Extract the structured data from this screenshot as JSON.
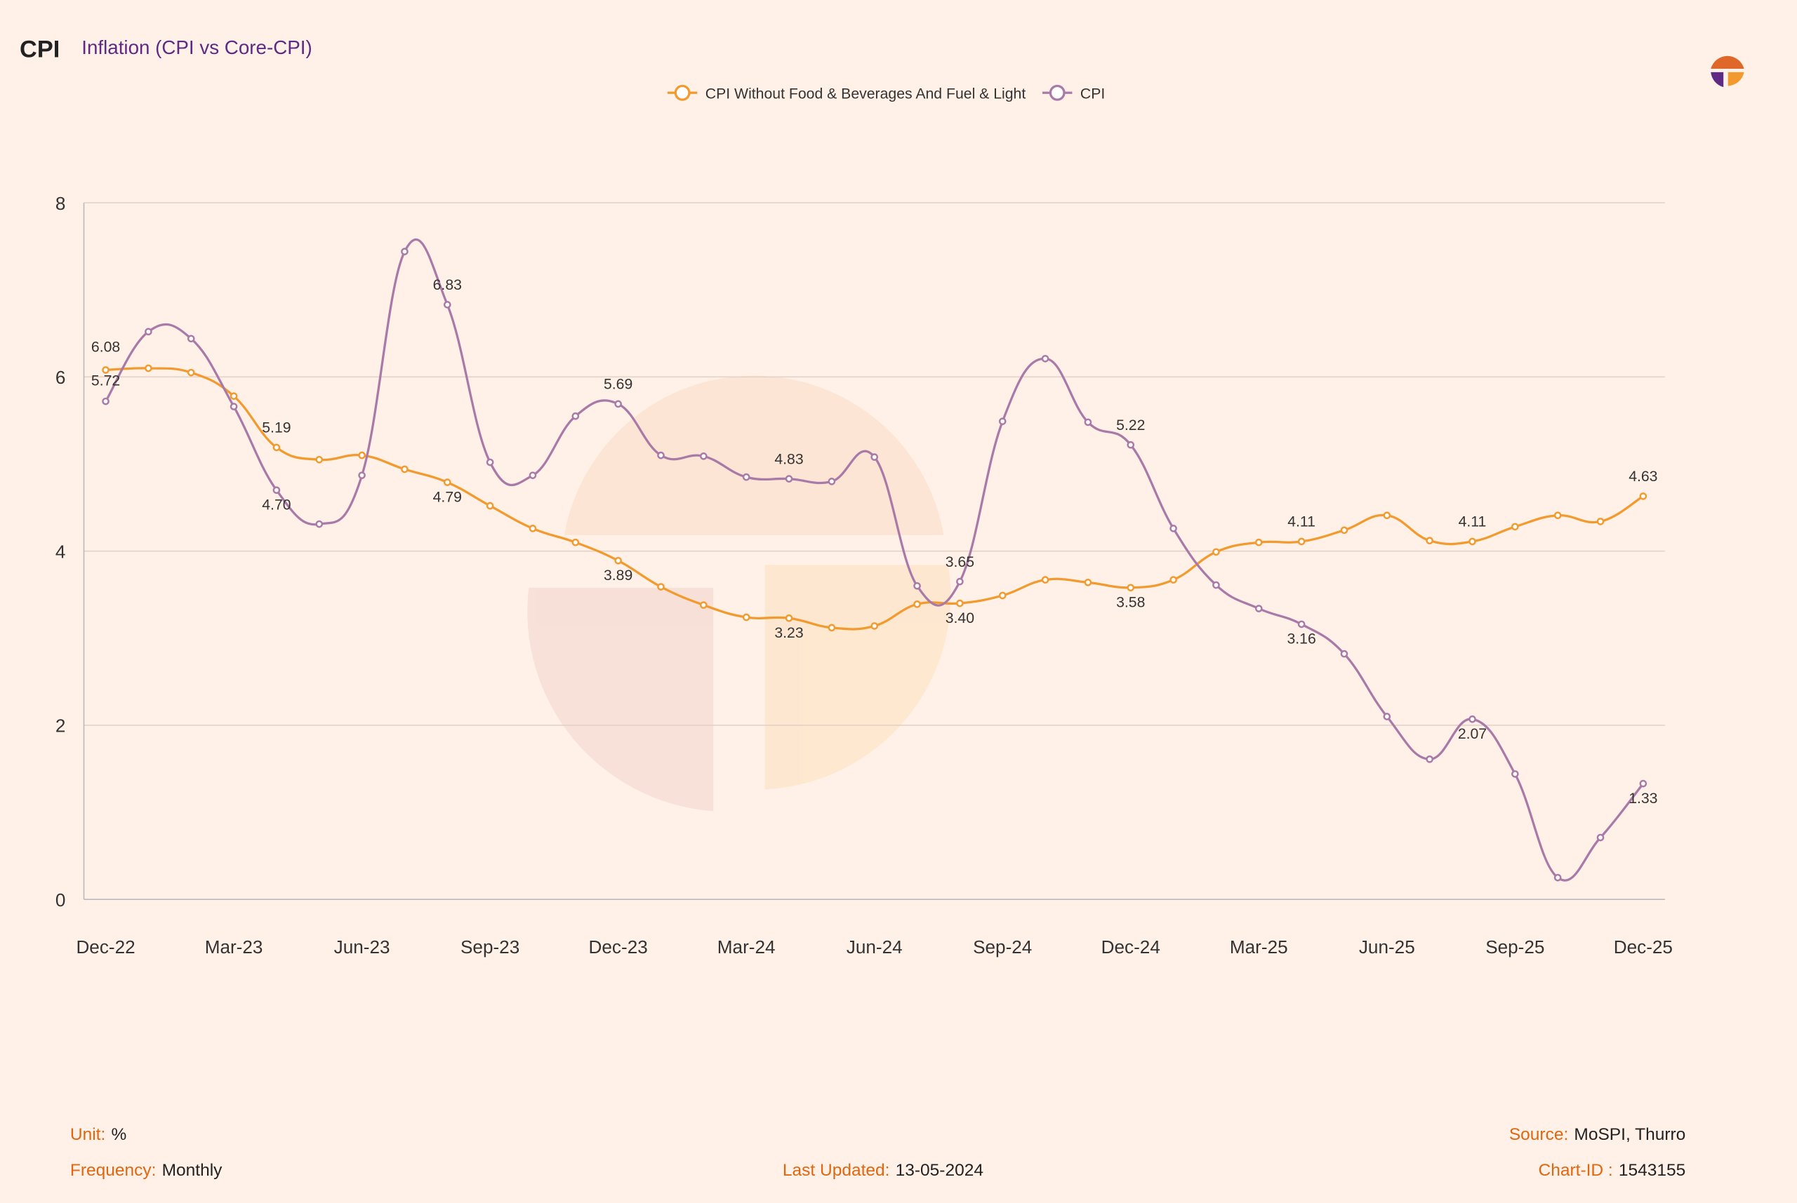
{
  "header": {
    "badge": "CPI",
    "title": "Inflation (CPI vs Core-CPI)"
  },
  "footer": {
    "unit_label": "Unit:",
    "unit_value": "%",
    "frequency_label": "Frequency:",
    "frequency_value": "Monthly",
    "updated_label": "Last Updated:",
    "updated_value": "13-05-2024",
    "source_label": "Source:",
    "source_value": "MoSPI, Thurro",
    "chartid_label": "Chart-ID :",
    "chartid_value": "1543155"
  },
  "colors": {
    "core": "#f39a2f",
    "cpi": "#a97aa8",
    "title": "#5f2a84",
    "footer_label": "#e0670f",
    "background": "#fff1e7"
  },
  "chart_data": {
    "type": "line",
    "title": "Inflation (CPI vs Core-CPI)",
    "xlabel": "",
    "ylabel": "",
    "ylim": [
      0,
      8
    ],
    "yticks": [
      0,
      2,
      4,
      6,
      8
    ],
    "grid": true,
    "legend_position": "top-center",
    "x": [
      "Dec-22",
      "Jan-23",
      "Feb-23",
      "Mar-23",
      "Apr-23",
      "May-23",
      "Jun-23",
      "Jul-23",
      "Aug-23",
      "Sep-23",
      "Oct-23",
      "Nov-23",
      "Dec-23",
      "Jan-24",
      "Feb-24",
      "Mar-24",
      "Apr-24",
      "May-24",
      "Jun-24",
      "Jul-24",
      "Aug-24",
      "Sep-24",
      "Oct-24",
      "Nov-24",
      "Dec-24",
      "Jan-25",
      "Feb-25",
      "Mar-25",
      "Apr-25",
      "May-25",
      "Jun-25",
      "Jul-25",
      "Aug-25",
      "Sep-25",
      "Oct-25",
      "Nov-25",
      "Dec-25"
    ],
    "xtick_labels": [
      "Dec-22",
      "Mar-23",
      "Jun-23",
      "Sep-23",
      "Dec-23",
      "Mar-24",
      "Jun-24",
      "Sep-24",
      "Dec-24",
      "Mar-25",
      "Jun-25",
      "Sep-25",
      "Dec-25"
    ],
    "series": [
      {
        "name": "CPI Without Food & Beverages And Fuel & Light",
        "color": "#f39a2f",
        "values": [
          6.08,
          6.1,
          6.05,
          5.78,
          5.19,
          5.05,
          5.1,
          4.94,
          4.79,
          4.52,
          4.26,
          4.1,
          3.89,
          3.59,
          3.38,
          3.24,
          3.23,
          3.12,
          3.14,
          3.39,
          3.4,
          3.49,
          3.67,
          3.64,
          3.58,
          3.67,
          3.99,
          4.1,
          4.11,
          4.24,
          4.41,
          4.12,
          4.11,
          4.28,
          4.41,
          4.34,
          4.63
        ],
        "labels": {
          "0": "6.08",
          "4": "5.19",
          "8": "4.79",
          "12": "3.89",
          "16": "3.23",
          "20": "3.40",
          "24": "3.58",
          "28": "4.11",
          "32": "4.11",
          "36": "4.63"
        }
      },
      {
        "name": "CPI",
        "color": "#a97aa8",
        "values": [
          5.72,
          6.52,
          6.44,
          5.66,
          4.7,
          4.31,
          4.87,
          7.44,
          6.83,
          5.02,
          4.87,
          5.55,
          5.69,
          5.1,
          5.09,
          4.85,
          4.83,
          4.8,
          5.08,
          3.6,
          3.65,
          5.49,
          6.21,
          5.48,
          5.22,
          4.26,
          3.61,
          3.34,
          3.16,
          2.82,
          2.1,
          1.61,
          2.07,
          1.44,
          0.25,
          0.71,
          1.33
        ],
        "labels": {
          "0": "5.72",
          "4": "4.70",
          "8": "6.83",
          "12": "5.69",
          "16": "4.83",
          "20": "3.65",
          "24": "5.22",
          "28": "3.16",
          "32": "2.07",
          "36": "1.33"
        }
      }
    ]
  }
}
